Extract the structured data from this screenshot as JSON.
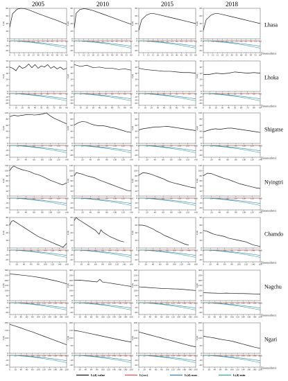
{
  "chart_data": {
    "type": "line",
    "columns": [
      "2005",
      "2010",
      "2015",
      "2018"
    ],
    "y_label": "L(d)",
    "x_label": "Distance(km)",
    "legend": [
      {
        "name": "L(d) value",
        "color": "#1a1a1a"
      },
      {
        "name": "L(csr)",
        "color": "#e8534a"
      },
      {
        "name": "L(d) max",
        "color": "#2e7fc4"
      },
      {
        "name": "L(d) min",
        "color": "#34a88e"
      }
    ],
    "regions": [
      {
        "name": "Lhasa",
        "xmax": 60,
        "xticks": [
          0,
          5,
          10,
          15,
          20,
          25,
          30,
          35,
          40,
          45,
          50,
          55,
          60
        ],
        "yticks": [
          0,
          20,
          40,
          60,
          80
        ],
        "ymax": 80,
        "lowticks": [
          0,
          -10,
          -20
        ],
        "panels": [
          {
            "x": [
              0,
              3,
              8,
              12,
              16,
              20,
              30,
              40,
              50,
              60
            ],
            "y": [
              30,
              66,
              78,
              80,
              79,
              76,
              66,
              57,
              48,
              38
            ]
          },
          {
            "x": [
              0,
              2,
              6,
              10,
              14,
              20,
              30,
              40,
              50,
              60
            ],
            "y": [
              28,
              67,
              77,
              79,
              78,
              74,
              65,
              56,
              47,
              38
            ]
          },
          {
            "x": [
              0,
              3,
              8,
              12,
              16,
              20,
              30,
              40,
              50,
              60
            ],
            "y": [
              22,
              50,
              62,
              66,
              66,
              64,
              58,
              52,
              46,
              40
            ]
          },
          {
            "x": [
              0,
              3,
              8,
              12,
              16,
              20,
              30,
              40,
              50,
              60
            ],
            "y": [
              22,
              50,
              62,
              66,
              66,
              64,
              58,
              52,
              46,
              40
            ]
          }
        ]
      },
      {
        "name": "Lhoka",
        "xmax": 90,
        "xticks": [
          0,
          10,
          20,
          30,
          40,
          50,
          60,
          70,
          80,
          90
        ],
        "yticks": [
          0,
          10,
          20,
          30,
          40,
          50
        ],
        "ymax": 50,
        "lowticks": [
          0,
          -10,
          -20,
          -30
        ],
        "panels": [
          {
            "x": [
              0,
              5,
              10,
              15,
              20,
              25,
              30,
              35,
              40,
              45,
              50,
              55,
              60,
              65,
              70,
              75,
              80,
              85,
              90
            ],
            "y": [
              40,
              38,
              34,
              42,
              38,
              40,
              45,
              39,
              44,
              38,
              42,
              40,
              44,
              38,
              41,
              37,
              40,
              36,
              38
            ]
          },
          {
            "x": [
              0,
              10,
              20,
              30,
              40,
              50,
              60,
              70,
              80,
              90
            ],
            "y": [
              44,
              41,
              43,
              39,
              40,
              38,
              38,
              36,
              37,
              35
            ]
          },
          {
            "x": [
              0,
              10,
              20,
              30,
              40,
              50,
              60,
              70,
              80,
              90
            ],
            "y": [
              38,
              36,
              35,
              34,
              33,
              33,
              32,
              31,
              31,
              30
            ]
          },
          {
            "x": [
              0,
              10,
              20,
              30,
              40,
              50,
              60,
              70,
              80,
              90
            ],
            "y": [
              28,
              28,
              30,
              29,
              30,
              32,
              31,
              30,
              31,
              30
            ]
          }
        ]
      },
      {
        "name": "Shigatse",
        "xmax": 140,
        "xticks": [
          0,
          20,
          40,
          60,
          80,
          100,
          120,
          140
        ],
        "yticks": [
          0,
          20,
          40,
          60,
          80,
          100
        ],
        "ymax": 100,
        "lowticks": [
          0,
          -10,
          -20
        ],
        "panels": [
          {
            "x": [
              0,
              10,
              20,
              30,
              40,
              50,
              60,
              70,
              80,
              90,
              100,
              110,
              120,
              130,
              140
            ],
            "y": [
              88,
              92,
              90,
              92,
              94,
              95,
              93,
              94,
              96,
              100,
              90,
              82,
              76,
              70,
              64
            ]
          },
          {
            "x": [
              0,
              10,
              20,
              30,
              40,
              50,
              60,
              70,
              80,
              90,
              100,
              110,
              120,
              130,
              140
            ],
            "y": [
              60,
              68,
              72,
              70,
              64,
              60,
              58,
              58,
              56,
              52,
              50,
              46,
              42,
              38,
              36
            ]
          },
          {
            "x": [
              0,
              10,
              20,
              30,
              40,
              50,
              60,
              70,
              80,
              90,
              100,
              110,
              120,
              130,
              140
            ],
            "y": [
              44,
              48,
              50,
              52,
              54,
              54,
              55,
              56,
              54,
              52,
              50,
              48,
              46,
              44,
              42
            ]
          },
          {
            "x": [
              0,
              10,
              20,
              30,
              40,
              50,
              60,
              70,
              80,
              90,
              100,
              110,
              120,
              130,
              140
            ],
            "y": [
              38,
              42,
              46,
              48,
              46,
              48,
              50,
              50,
              48,
              46,
              44,
              42,
              40,
              38,
              36
            ]
          }
        ]
      },
      {
        "name": "Nyingtri",
        "xmax": 140,
        "xticks": [
          0,
          20,
          40,
          60,
          80,
          100,
          120,
          140
        ],
        "yticks": [
          0,
          20,
          40,
          60,
          80,
          100,
          120
        ],
        "ymax": 120,
        "lowticks": [
          0,
          -10,
          -20
        ],
        "panels": [
          {
            "x": [
              0,
              5,
              10,
              20,
              30,
              40,
              50,
              60,
              70,
              80,
              90,
              100,
              110,
              120,
              130,
              140
            ],
            "y": [
              100,
              112,
              118,
              110,
              104,
              100,
              96,
              88,
              84,
              78,
              70,
              62,
              56,
              50,
              44,
              52
            ]
          },
          {
            "x": [
              0,
              5,
              10,
              20,
              30,
              40,
              50,
              60,
              70,
              80,
              90,
              100,
              110,
              120,
              130,
              140
            ],
            "y": [
              80,
              92,
              90,
              86,
              80,
              76,
              72,
              64,
              58,
              52,
              46,
              40,
              34,
              28,
              22,
              20
            ]
          },
          {
            "x": [
              0,
              10,
              20,
              30,
              40,
              50,
              60,
              70,
              80,
              90,
              100,
              110,
              120,
              130,
              140
            ],
            "y": [
              82,
              92,
              90,
              86,
              80,
              74,
              68,
              60,
              54,
              50,
              46,
              42,
              38,
              34,
              32
            ]
          },
          {
            "x": [
              0,
              10,
              20,
              30,
              40,
              50,
              60,
              70,
              80,
              90,
              100,
              110,
              120,
              130,
              140
            ],
            "y": [
              80,
              90,
              88,
              82,
              76,
              70,
              66,
              60,
              54,
              48,
              44,
              40,
              36,
              32,
              30
            ]
          }
        ]
      },
      {
        "name": "Chamdo",
        "xmax": 160,
        "xticks": [
          0,
          20,
          40,
          60,
          80,
          100,
          120,
          140,
          160
        ],
        "yticks": [
          0,
          20,
          40,
          60,
          80
        ],
        "ymax": 80,
        "lowticks": [
          0,
          -10,
          -20
        ],
        "panels": [
          {
            "x": [
              0,
              5,
              10,
              20,
              30,
              40,
              50,
              60,
              70,
              80,
              90,
              100,
              110,
              120,
              130,
              140,
              150,
              160
            ],
            "y": [
              60,
              70,
              72,
              66,
              60,
              54,
              48,
              42,
              36,
              30,
              26,
              22,
              18,
              14,
              10,
              6,
              2,
              12
            ]
          },
          {
            "x": [
              0,
              5,
              10,
              20,
              30,
              40,
              50,
              60,
              70,
              75,
              80,
              90,
              100,
              110,
              120,
              130,
              140
            ],
            "y": [
              72,
              80,
              76,
              70,
              64,
              58,
              52,
              46,
              36,
              48,
              42,
              36,
              30,
              26,
              22,
              18,
              16
            ]
          },
          {
            "x": [
              0,
              10,
              20,
              30,
              40,
              50,
              60,
              70,
              80,
              90,
              100,
              110,
              120,
              130,
              140
            ],
            "y": [
              60,
              60,
              58,
              54,
              50,
              44,
              40,
              34,
              30,
              26,
              22,
              18,
              14,
              10,
              8
            ]
          },
          {
            "x": [
              0,
              10,
              20,
              30,
              40,
              50,
              60,
              70,
              80,
              90,
              100,
              110,
              120,
              130,
              140,
              150,
              160
            ],
            "y": [
              46,
              44,
              40,
              36,
              34,
              32,
              30,
              26,
              24,
              22,
              20,
              18,
              16,
              12,
              8,
              6,
              4
            ]
          }
        ]
      },
      {
        "name": "Nagchu",
        "xmax": 200,
        "xticks": [
          0,
          20,
          40,
          60,
          80,
          100,
          120,
          140,
          160,
          180,
          200
        ],
        "yticks": [
          0,
          50,
          100,
          150,
          200,
          250,
          300
        ],
        "ymax": 300,
        "lowticks": [
          0,
          -10,
          -20
        ],
        "panels": [
          {
            "x": [
              0,
              20,
              40,
              60,
              80,
              100,
              120,
              140,
              160,
              180,
              200
            ],
            "y": [
              262,
              258,
              252,
              246,
              238,
              230,
              220,
              208,
              196,
              182,
              166
            ]
          },
          {
            "x": [
              0,
              20,
              40,
              60,
              80,
              90,
              100,
              120,
              140,
              160,
              180,
              200
            ],
            "y": [
              200,
              202,
              196,
              190,
              184,
              210,
              182,
              176,
              166,
              158,
              148,
              140
            ]
          },
          {
            "x": [
              0,
              20,
              40,
              60,
              80,
              100,
              120,
              140,
              160,
              180,
              200
            ],
            "y": [
              136,
              132,
              128,
              124,
              120,
              118,
              116,
              114,
              110,
              104,
              100
            ]
          },
          {
            "x": [
              0,
              20,
              40,
              60,
              80,
              100,
              120,
              140,
              160,
              180,
              200
            ],
            "y": [
              78,
              76,
              74,
              72,
              74,
              72,
              70,
              70,
              68,
              66,
              64
            ]
          }
        ]
      },
      {
        "name": "Ngari",
        "xmax": 200,
        "xticks": [
          0,
          20,
          40,
          60,
          80,
          100,
          120,
          140,
          160,
          180,
          200
        ],
        "yticks": [
          0,
          50,
          100,
          150,
          200
        ],
        "ymax": 200,
        "lowticks": [
          0,
          -10,
          -20
        ],
        "panels": [
          {
            "x": [
              0,
              20,
              40,
              60,
              80,
              100,
              120,
              140,
              160,
              180,
              200
            ],
            "y": [
              190,
              178,
              166,
              152,
              140,
              126,
              112,
              98,
              84,
              70,
              56
            ]
          },
          {
            "x": [
              0,
              20,
              40,
              60,
              80,
              100,
              120,
              140,
              160,
              180,
              200
            ],
            "y": [
              150,
              144,
              136,
              128,
              120,
              112,
              104,
              96,
              88,
              80,
              74
            ]
          },
          {
            "x": [
              0,
              20,
              40,
              60,
              80,
              100,
              120,
              140,
              160,
              180,
              200
            ],
            "y": [
              140,
              130,
              120,
              110,
              100,
              90,
              80,
              70,
              60,
              50,
              42
            ]
          },
          {
            "x": [
              0,
              20,
              40,
              60,
              80,
              100,
              120,
              140,
              160,
              180,
              200
            ],
            "y": [
              112,
              106,
              100,
              92,
              86,
              80,
              70,
              60,
              50,
              40,
              32
            ]
          }
        ]
      }
    ]
  }
}
